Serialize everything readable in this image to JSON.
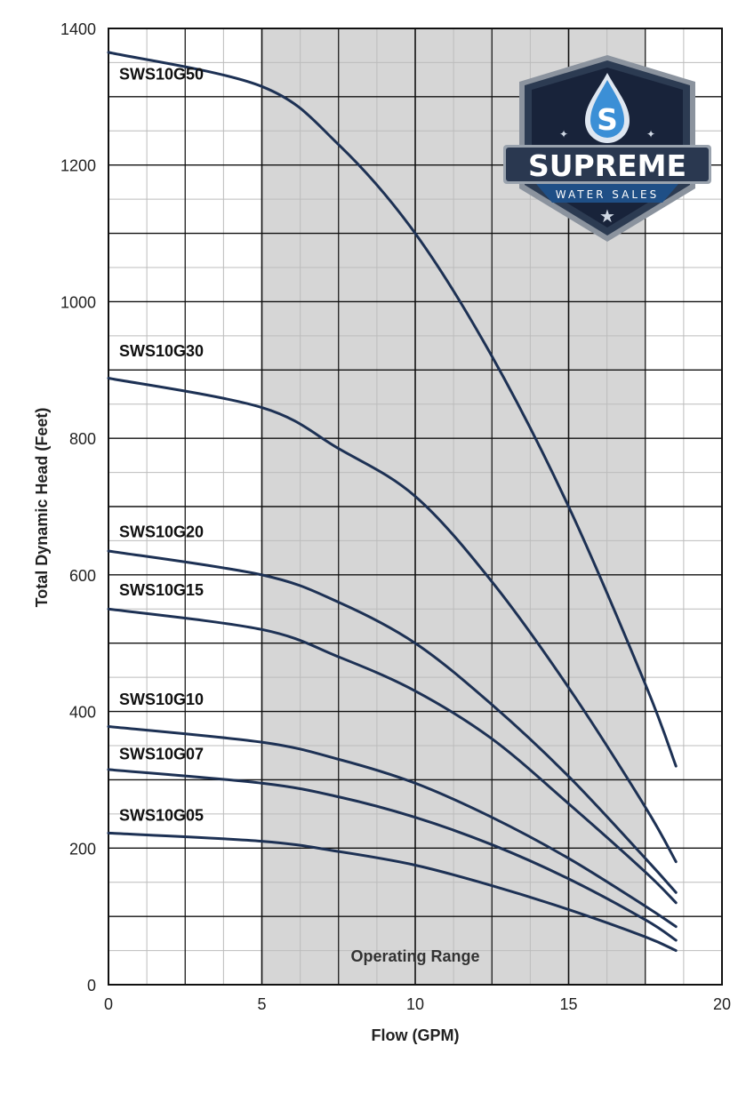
{
  "chart_data": {
    "type": "line",
    "xlabel": "Flow (GPM)",
    "ylabel": "Total Dynamic Head (Feet)",
    "xlim": [
      0,
      20
    ],
    "ylim": [
      0,
      1400
    ],
    "x_ticks": [
      0,
      5,
      10,
      15,
      20
    ],
    "y_ticks": [
      0,
      200,
      400,
      600,
      800,
      1000,
      1200,
      1400
    ],
    "grid": true,
    "operating_range": {
      "x": [
        5,
        17.5
      ],
      "label": "Operating Range"
    },
    "series": [
      {
        "name": "SWS10G50",
        "x": [
          0,
          5,
          7.5,
          10,
          12.5,
          15,
          17.5,
          18.5
        ],
        "y": [
          1365,
          1315,
          1230,
          1100,
          920,
          700,
          440,
          320
        ]
      },
      {
        "name": "SWS10G30",
        "x": [
          0,
          5,
          7.5,
          10,
          12.5,
          15,
          17.5,
          18.5
        ],
        "y": [
          888,
          845,
          785,
          715,
          590,
          435,
          260,
          180
        ]
      },
      {
        "name": "SWS10G20",
        "x": [
          0,
          5,
          7.5,
          10,
          12.5,
          15,
          17.5,
          18.5
        ],
        "y": [
          635,
          600,
          560,
          500,
          410,
          305,
          185,
          135
        ]
      },
      {
        "name": "SWS10G15",
        "x": [
          0,
          5,
          7.5,
          10,
          12.5,
          15,
          17.5,
          18.5
        ],
        "y": [
          550,
          520,
          480,
          430,
          360,
          265,
          165,
          120
        ]
      },
      {
        "name": "SWS10G10",
        "x": [
          0,
          5,
          7.5,
          10,
          12.5,
          15,
          17.5,
          18.5
        ],
        "y": [
          378,
          355,
          330,
          295,
          245,
          185,
          115,
          85
        ]
      },
      {
        "name": "SWS10G07",
        "x": [
          0,
          5,
          7.5,
          10,
          12.5,
          15,
          17.5,
          18.5
        ],
        "y": [
          315,
          295,
          275,
          245,
          205,
          155,
          95,
          65
        ]
      },
      {
        "name": "SWS10G05",
        "x": [
          0,
          5,
          7.5,
          10,
          12.5,
          15,
          17.5,
          18.5
        ],
        "y": [
          222,
          210,
          195,
          175,
          145,
          110,
          70,
          50
        ]
      }
    ],
    "series_labels": [
      {
        "text": "SWS10G50",
        "y_anchor": 1325
      },
      {
        "text": "SWS10G30",
        "y_anchor": 920
      },
      {
        "text": "SWS10G20",
        "y_anchor": 655
      },
      {
        "text": "SWS10G15",
        "y_anchor": 570
      },
      {
        "text": "SWS10G10",
        "y_anchor": 410
      },
      {
        "text": "SWS10G07",
        "y_anchor": 330
      },
      {
        "text": "SWS10G05",
        "y_anchor": 240
      }
    ],
    "colors": {
      "line": "#1d3154",
      "operating_range_fill": "#d6d6d6",
      "grid_major": "#111111",
      "grid_minor": "#bcbcbc"
    }
  },
  "logo": {
    "line1": "SUPREME",
    "line2": "WATER SALES",
    "emblem_letter": "S",
    "colors": {
      "frame": "#2c3b52",
      "inner": "#18233a",
      "accent": "#3b8fd6",
      "banner": "#1f4f86"
    }
  }
}
